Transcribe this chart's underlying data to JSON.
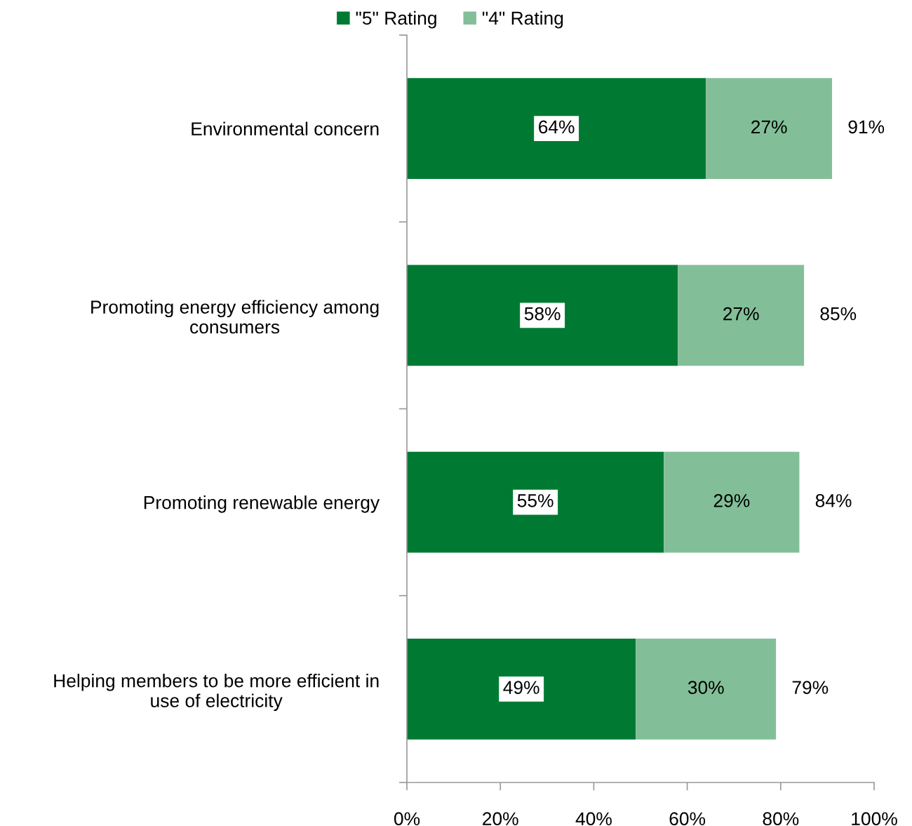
{
  "chart_data": {
    "type": "bar",
    "orientation": "horizontal",
    "stacked": true,
    "categories": [
      "Environmental concern",
      "Promoting energy efficiency among\nconsumers",
      "Promoting renewable energy",
      "Helping members to be more efficient in\nuse of electricity"
    ],
    "series": [
      {
        "name": "\"5\" Rating",
        "color": "#007a33",
        "values": [
          64,
          58,
          55,
          49
        ],
        "value_labels": [
          "64%",
          "58%",
          "55%",
          "49%"
        ]
      },
      {
        "name": "\"4\" Rating",
        "color": "#82bf98",
        "values": [
          27,
          27,
          29,
          30
        ],
        "value_labels": [
          "27%",
          "27%",
          "29%",
          "30%"
        ]
      }
    ],
    "totals": [
      "91%",
      "85%",
      "84%",
      "79%"
    ],
    "xlim": [
      0,
      100
    ],
    "xticks": [
      {
        "value": 0,
        "label": "0%"
      },
      {
        "value": 20,
        "label": "20%"
      },
      {
        "value": 40,
        "label": "40%"
      },
      {
        "value": 60,
        "label": "60%"
      },
      {
        "value": 80,
        "label": "80%"
      },
      {
        "value": 100,
        "label": "100%"
      }
    ],
    "grid": false,
    "legend": "top"
  }
}
